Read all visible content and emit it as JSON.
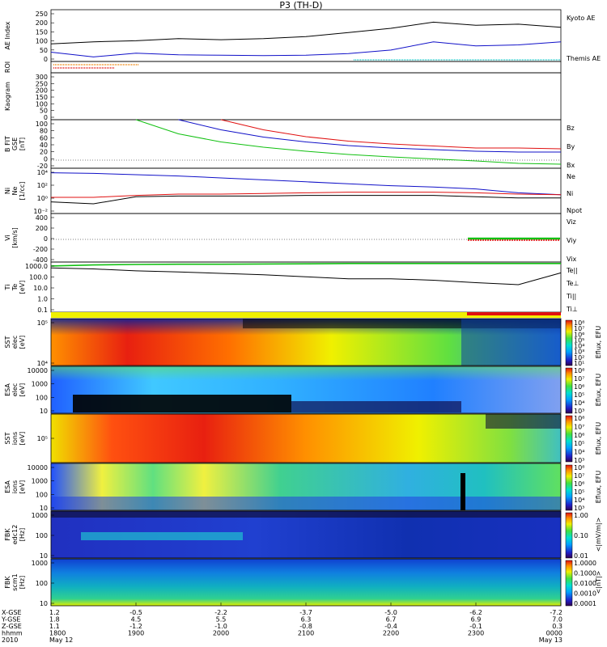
{
  "title": "P3 (TH-D)",
  "colors": {
    "blue": "#1010c8",
    "black": "#000000",
    "red": "#e01010",
    "green": "#10c010",
    "orange": "#f08000",
    "cyan": "#20c8c8",
    "yellow": "#f0f000",
    "roi_red": "#e01010"
  },
  "panels": [
    {
      "id": "ae",
      "ylabel": [
        "AE Index"
      ],
      "ticks": [
        "250",
        "200",
        "150",
        "100",
        "50",
        "0"
      ],
      "legend": [
        {
          "text": "Kyoto AE",
          "color": "blue"
        },
        {
          "text": "Themis AE",
          "color": "black"
        }
      ]
    },
    {
      "id": "roi",
      "ylabel": [
        "ROI"
      ],
      "ticks": [],
      "legend": []
    },
    {
      "id": "kyoto",
      "ylabel": [
        "Kaogram"
      ],
      "ticks": [
        "300",
        "250",
        "200",
        "150",
        "100",
        "50",
        "0"
      ],
      "legend": []
    },
    {
      "id": "bfield",
      "ylabel": [
        "B FIT",
        "GSE",
        "[nT]"
      ],
      "ticks": [
        "100",
        "80",
        "60",
        "40",
        "20",
        "0",
        "-20"
      ],
      "legend": [
        {
          "text": "Bz",
          "color": "red"
        },
        {
          "text": "By",
          "color": "green"
        },
        {
          "text": "Bx",
          "color": "blue"
        }
      ]
    },
    {
      "id": "density",
      "ylabel": [
        "Ni",
        "Ne",
        "[1/cc]"
      ],
      "ticks": [
        "10⁴",
        "10²",
        "10⁰",
        "10⁻²"
      ],
      "legend": [
        {
          "text": "Ne",
          "color": "red"
        },
        {
          "text": "Ni",
          "color": "black"
        },
        {
          "text": "Npot",
          "color": "blue"
        }
      ]
    },
    {
      "id": "velocity",
      "ylabel": [
        "Vi",
        "[km/s]"
      ],
      "ticks": [
        "400",
        "200",
        "0",
        "-200",
        "-400"
      ],
      "legend": [
        {
          "text": "Viz",
          "color": "red"
        },
        {
          "text": "Viy",
          "color": "green"
        },
        {
          "text": "Vix",
          "color": "blue"
        }
      ]
    },
    {
      "id": "temperature",
      "ylabel": [
        "Ti",
        "Te",
        "[eV]"
      ],
      "ticks": [
        "1000.0",
        "100.0",
        "10.0",
        "1.0",
        "0.1"
      ],
      "legend": [
        {
          "text": "Te||",
          "color": "black"
        },
        {
          "text": "Te⊥",
          "color": "red"
        },
        {
          "text": "Ti||",
          "color": "green"
        },
        {
          "text": "Ti⊥",
          "color": "blue"
        }
      ]
    },
    {
      "id": "sst_e",
      "ylabel": [
        "SST",
        "elec",
        "[eV]"
      ],
      "ticks": [
        "10⁵",
        "10⁴"
      ],
      "legend": []
    },
    {
      "id": "esa_e",
      "ylabel": [
        "ESA",
        "elec",
        "[eV]"
      ],
      "ticks": [
        "10000",
        "1000",
        "100",
        "10"
      ],
      "legend": []
    },
    {
      "id": "sst_i",
      "ylabel": [
        "SST",
        "ions",
        "[eV]"
      ],
      "ticks": [
        "10⁵"
      ],
      "legend": []
    },
    {
      "id": "esa_i",
      "ylabel": [
        "ESA",
        "ions",
        "[eV]"
      ],
      "ticks": [
        "10000",
        "1000",
        "100",
        "10"
      ],
      "legend": []
    },
    {
      "id": "fbk_e",
      "ylabel": [
        "FBK",
        "edc12",
        "[Hz]"
      ],
      "ticks": [
        "1000",
        "100",
        "10"
      ],
      "legend": []
    },
    {
      "id": "fbk_b",
      "ylabel": [
        "FBK",
        "scm1",
        "[Hz]"
      ],
      "ticks": [
        "1000",
        "100",
        "10"
      ],
      "legend": []
    }
  ],
  "colorbars": [
    {
      "id": "sst_e",
      "label": "Eflux, EFU",
      "ticks": [
        "10⁸",
        "10⁷",
        "10⁶",
        "10⁵",
        "10⁴",
        "10³",
        "10²",
        "10¹"
      ]
    },
    {
      "id": "esa_e",
      "label": "Eflux, EFU",
      "ticks": [
        "10⁸",
        "10⁷",
        "10⁶",
        "10⁵",
        "10⁴",
        "10³"
      ]
    },
    {
      "id": "sst_i",
      "label": "Eflux, EFU",
      "ticks": [
        "10⁸",
        "10⁷",
        "10⁶",
        "10⁵",
        "10⁴",
        "10³"
      ]
    },
    {
      "id": "esa_i",
      "label": "Eflux, EFU",
      "ticks": [
        "10⁸",
        "10⁷",
        "10⁶",
        "10⁵",
        "10⁴",
        "10³"
      ]
    },
    {
      "id": "fbk_e",
      "label": "<|mV/m|>",
      "ticks": [
        "1.00",
        "0.10",
        "0.01"
      ]
    },
    {
      "id": "fbk_b",
      "label": "<|nT|>",
      "ticks": [
        "1.0000",
        "0.1000",
        "0.0100",
        "0.0010",
        "0.0001"
      ]
    }
  ],
  "chart_data": {
    "type": "line",
    "title": "P3 (TH-D)",
    "x_axis": {
      "row_labels": [
        "X-GSE",
        "Y-GSE",
        "Z-GSE",
        "hhmm",
        "2010"
      ],
      "columns": [
        [
          "1.2",
          "1.8",
          "1.1",
          "1800",
          "May 12"
        ],
        [
          "-0.5",
          "4.5",
          "-1.2",
          "1900",
          ""
        ],
        [
          "-2.2",
          "5.5",
          "-1.0",
          "2000",
          ""
        ],
        [
          "-3.7",
          "6.3",
          "-0.8",
          "2100",
          ""
        ],
        [
          "-5.0",
          "6.7",
          "-0.4",
          "2200",
          ""
        ],
        [
          "-6.2",
          "6.9",
          "-0.1",
          "2300",
          ""
        ],
        [
          "-7.2",
          "7.0",
          "0.3",
          "0000",
          "May 13"
        ]
      ],
      "hours": [
        18,
        19,
        20,
        21,
        22,
        23,
        24
      ]
    },
    "ae_index": {
      "x_hours": [
        18.0,
        18.5,
        19.0,
        19.5,
        20.0,
        20.5,
        21.0,
        21.5,
        22.0,
        22.5,
        23.0,
        23.5,
        24.0
      ],
      "series": [
        {
          "name": "Kyoto AE",
          "color": "blue",
          "values": [
            45,
            22,
            40,
            32,
            30,
            28,
            30,
            38,
            55,
            95,
            75,
            80,
            95
          ]
        },
        {
          "name": "Themis AE",
          "color": "black",
          "values": [
            85,
            95,
            100,
            110,
            105,
            110,
            120,
            140,
            160,
            190,
            175,
            180,
            165
          ]
        }
      ],
      "ylim": [
        0,
        250
      ]
    },
    "b_field": {
      "x_hours": [
        19.0,
        19.5,
        20.0,
        20.5,
        21.0,
        21.5,
        22.0,
        22.5,
        23.0,
        23.5,
        24.0
      ],
      "series": [
        {
          "name": "Bz",
          "color": "red",
          "values": [
            null,
            null,
            100,
            75,
            58,
            47,
            40,
            35,
            30,
            30,
            28
          ]
        },
        {
          "name": "By",
          "color": "green",
          "values": [
            100,
            65,
            45,
            32,
            22,
            14,
            8,
            3,
            -2,
            -8,
            -10
          ]
        },
        {
          "name": "Bx",
          "color": "blue",
          "values": [
            null,
            100,
            75,
            57,
            45,
            36,
            30,
            26,
            22,
            20,
            20
          ]
        }
      ],
      "ylim": [
        -20,
        100
      ]
    },
    "density": {
      "x_hours": [
        18.0,
        18.5,
        19.0,
        19.5,
        20.0,
        20.5,
        21.0,
        21.5,
        22.0,
        22.5,
        23.0,
        23.5,
        24.0
      ],
      "series": [
        {
          "name": "Npot",
          "color": "blue",
          "log10_values": [
            3.8,
            3.7,
            3.5,
            3.3,
            3.0,
            2.7,
            2.4,
            2.1,
            1.8,
            1.6,
            1.3,
            0.7,
            0.4
          ]
        },
        {
          "name": "Ne",
          "color": "red",
          "log10_values": [
            0.0,
            0.0,
            0.3,
            0.5,
            0.5,
            0.6,
            0.7,
            0.8,
            0.8,
            0.8,
            0.7,
            0.5,
            0.4
          ]
        },
        {
          "name": "Ni",
          "color": "black",
          "log10_values": [
            -0.7,
            -1.0,
            0.1,
            0.2,
            0.2,
            0.2,
            0.3,
            0.3,
            0.3,
            0.3,
            0.1,
            -0.1,
            -0.1
          ]
        }
      ],
      "ylim_log10": [
        -2.5,
        4.5
      ]
    },
    "temperature": {
      "x_hours": [
        18.0,
        18.5,
        19.0,
        19.5,
        20.0,
        20.5,
        21.0,
        21.5,
        22.0,
        22.5,
        23.0,
        23.5,
        24.0
      ],
      "series": [
        {
          "name": "Ti||",
          "color": "green",
          "log10_values": [
            3.2,
            3.3,
            3.35,
            3.38,
            3.38,
            3.4,
            3.42,
            3.45,
            3.45,
            3.45,
            3.45,
            3.45,
            3.45
          ]
        },
        {
          "name": "Te||",
          "color": "black",
          "log10_values": [
            3.0,
            2.9,
            2.7,
            2.6,
            2.45,
            2.3,
            2.1,
            1.9,
            1.9,
            1.75,
            1.5,
            1.3,
            2.5
          ]
        }
      ],
      "ylim_log10": [
        -1.5,
        3.6
      ]
    },
    "velocity": {
      "ylim": [
        -500,
        500
      ],
      "note": "data present from about 2310 UT to 2400 UT, near zero"
    }
  }
}
